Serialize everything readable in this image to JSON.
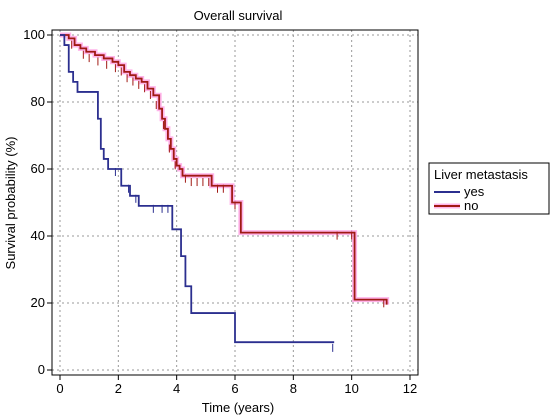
{
  "chart_data": {
    "type": "line",
    "title": "Overall survival",
    "xlabel": "Time (years)",
    "ylabel": "Survival probability (%)",
    "xlim": [
      0,
      12
    ],
    "ylim": [
      0,
      100
    ],
    "xticks": [
      0,
      2,
      4,
      6,
      8,
      10,
      12
    ],
    "yticks": [
      0,
      20,
      40,
      60,
      80,
      100
    ],
    "grid": true,
    "legend": {
      "title": "Liver metastasis",
      "position": "right"
    },
    "series": [
      {
        "name": "yes",
        "color": "#2b2f8f",
        "points": [
          [
            0,
            100
          ],
          [
            0.15,
            97
          ],
          [
            0.3,
            89
          ],
          [
            0.45,
            86
          ],
          [
            0.6,
            83
          ],
          [
            1.3,
            75
          ],
          [
            1.4,
            66
          ],
          [
            1.5,
            63
          ],
          [
            1.65,
            60
          ],
          [
            2.1,
            55
          ],
          [
            2.4,
            52
          ],
          [
            2.7,
            49
          ],
          [
            3.85,
            42
          ],
          [
            4.15,
            34
          ],
          [
            4.3,
            25
          ],
          [
            4.5,
            17
          ],
          [
            6.0,
            8.3
          ],
          [
            9.4,
            8.3
          ]
        ],
        "censored": [
          [
            1.9,
            60
          ],
          [
            2.1,
            57
          ],
          [
            2.35,
            55
          ],
          [
            2.6,
            52
          ],
          [
            3.2,
            49
          ],
          [
            3.5,
            49
          ],
          [
            3.7,
            49
          ],
          [
            9.35,
            7.5
          ]
        ]
      },
      {
        "name": "no",
        "color": "#a01a14",
        "halo": "#ff9be3",
        "points": [
          [
            0,
            100
          ],
          [
            0.3,
            99
          ],
          [
            0.5,
            97
          ],
          [
            0.7,
            96
          ],
          [
            0.9,
            95
          ],
          [
            1.2,
            94
          ],
          [
            1.5,
            93
          ],
          [
            1.8,
            92
          ],
          [
            2.0,
            91
          ],
          [
            2.2,
            89
          ],
          [
            2.4,
            88
          ],
          [
            2.6,
            87
          ],
          [
            2.8,
            86
          ],
          [
            3.0,
            84
          ],
          [
            3.2,
            82
          ],
          [
            3.4,
            78
          ],
          [
            3.5,
            75
          ],
          [
            3.6,
            72
          ],
          [
            3.7,
            69
          ],
          [
            3.8,
            66
          ],
          [
            3.9,
            63
          ],
          [
            4.0,
            61
          ],
          [
            4.1,
            60
          ],
          [
            4.2,
            58
          ],
          [
            5.2,
            55
          ],
          [
            5.9,
            50
          ],
          [
            6.2,
            41
          ],
          [
            10.1,
            21
          ],
          [
            11.2,
            19.5
          ]
        ],
        "censored": [
          [
            0.15,
            99
          ],
          [
            0.4,
            98
          ],
          [
            0.8,
            95
          ],
          [
            1.0,
            94
          ],
          [
            1.3,
            93
          ],
          [
            1.6,
            92
          ],
          [
            1.9,
            91
          ],
          [
            2.1,
            90
          ],
          [
            2.3,
            88
          ],
          [
            2.5,
            87
          ],
          [
            2.7,
            86
          ],
          [
            2.9,
            85
          ],
          [
            3.1,
            83
          ],
          [
            3.3,
            80
          ],
          [
            3.55,
            74
          ],
          [
            3.75,
            67
          ],
          [
            3.95,
            62
          ],
          [
            4.3,
            58
          ],
          [
            4.5,
            57
          ],
          [
            4.7,
            57
          ],
          [
            4.9,
            57
          ],
          [
            5.1,
            57
          ],
          [
            5.4,
            55
          ],
          [
            5.6,
            55
          ],
          [
            6.0,
            50
          ],
          [
            9.5,
            41
          ],
          [
            10.0,
            41
          ],
          [
            11.1,
            20.8
          ]
        ]
      }
    ]
  }
}
